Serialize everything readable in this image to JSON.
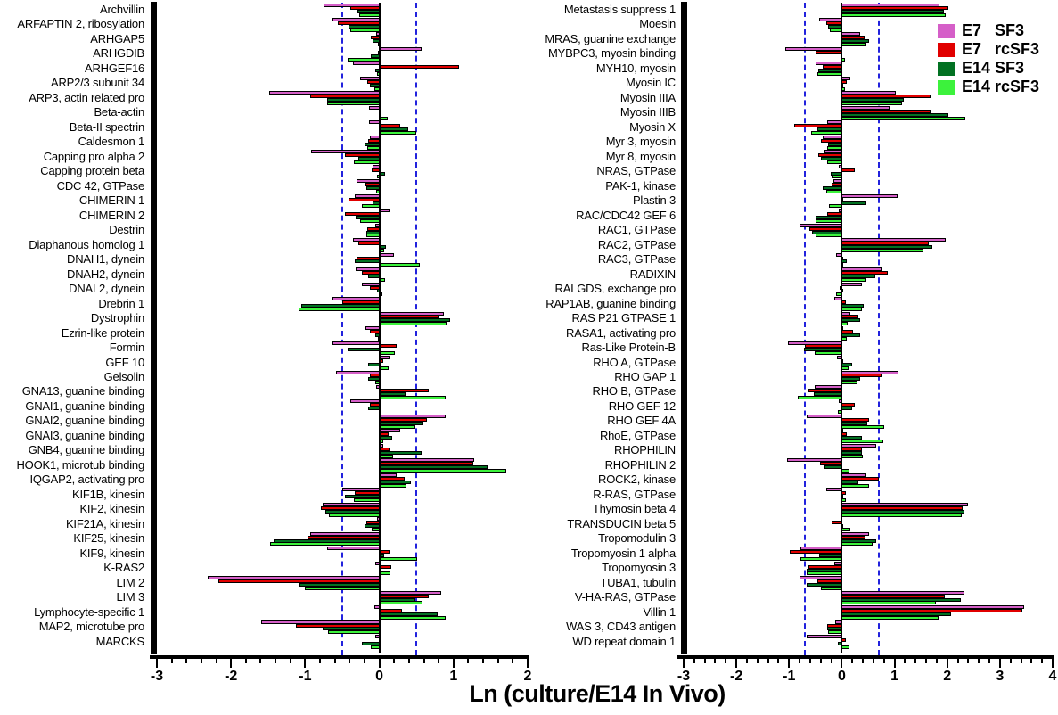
{
  "x_axis": {
    "label": "Ln (culture/E14 In Vivo)"
  },
  "legend": {
    "items": [
      {
        "label": "E7   SF3",
        "color": "#d55fc8"
      },
      {
        "label": "E7   rcSF3",
        "color": "#e10000"
      },
      {
        "label": "E14 SF3",
        "color": "#027122"
      },
      {
        "label": "E14 rcSF3",
        "color": "#3cf23c"
      }
    ]
  },
  "chart_data": {
    "type": "bar",
    "orientation": "horizontal",
    "xlabel": "Ln (culture/E14 In Vivo)",
    "series_names": [
      "E7 SF3",
      "E7 rcSF3",
      "E14 SF3",
      "E14 rcSF3"
    ],
    "series_colors": [
      "#d55fc8",
      "#e10000",
      "#027122",
      "#3cf23c"
    ],
    "grid": false,
    "legend_position": "top-right",
    "panels": [
      {
        "xlim": [
          -3,
          2
        ],
        "ticks": [
          -3,
          -2,
          -1,
          0,
          1,
          2
        ],
        "minor_tick_step": 0.2,
        "dashed_lines": [
          -0.5,
          0.5
        ],
        "rows": [
          {
            "label": "Archvillin",
            "values": [
              -0.75,
              -0.39,
              -0.29,
              -0.27
            ]
          },
          {
            "label": "ARFAPTIN 2, ribosylation",
            "values": [
              -0.63,
              -0.56,
              -0.41,
              -0.39
            ]
          },
          {
            "label": "ARHGAP5",
            "values": [
              -0.04,
              -0.12,
              -0.09,
              -0.02
            ]
          },
          {
            "label": "ARHGDIB",
            "values": [
              0.57,
              -0.02,
              -0.11,
              -0.43
            ]
          },
          {
            "label": "ARHGEF16",
            "values": [
              -0.35,
              1.08,
              -0.05,
              -0.03
            ]
          },
          {
            "label": "ARP2/3 subunit 34",
            "values": [
              -0.26,
              -0.16,
              -0.13,
              -0.07
            ]
          },
          {
            "label": "ARP3, actin related pro",
            "values": [
              -1.48,
              -0.93,
              -0.71,
              -0.71
            ]
          },
          {
            "label": "Beta-actin",
            "values": [
              -0.14,
              0.03,
              0.02,
              0.11
            ]
          },
          {
            "label": "Beta-II spectrin",
            "values": [
              -0.14,
              0.28,
              0.39,
              0.5
            ]
          },
          {
            "label": "Caldesmon 1",
            "values": [
              -0.13,
              -0.15,
              -0.2,
              -0.16
            ]
          },
          {
            "label": "Capping pro alpha 2",
            "values": [
              -0.92,
              -0.46,
              -0.28,
              -0.34
            ]
          },
          {
            "label": "Capping protein beta",
            "values": [
              -0.09,
              -0.1,
              0.08,
              -0.03
            ]
          },
          {
            "label": "CDC 42, GTPase",
            "values": [
              -0.31,
              -0.19,
              -0.17,
              -0.04
            ]
          },
          {
            "label": "CHIMERIN 1",
            "values": [
              -0.33,
              -0.42,
              -0.09,
              -0.24
            ]
          },
          {
            "label": "CHIMERIN 2",
            "values": [
              0.14,
              -0.46,
              -0.32,
              -0.26
            ]
          },
          {
            "label": "Destrin",
            "values": [
              -0.05,
              -0.16,
              -0.18,
              -0.18
            ]
          },
          {
            "label": "Diaphanous homolog 1",
            "values": [
              -0.35,
              -0.28,
              0.09,
              0.07
            ]
          },
          {
            "label": "DNAH1, dynein",
            "values": [
              0.2,
              -0.31,
              -0.33,
              0.55
            ]
          },
          {
            "label": "DNAH2, dynein",
            "values": [
              -0.32,
              -0.24,
              -0.15,
              0.08
            ]
          },
          {
            "label": "DNAL2, dynein",
            "values": [
              -0.24,
              -0.13,
              -0.03,
              0.04
            ]
          },
          {
            "label": "Drebrin 1",
            "values": [
              -0.63,
              -0.5,
              -1.05,
              -1.09
            ]
          },
          {
            "label": "Dystrophin",
            "values": [
              0.87,
              0.8,
              0.96,
              0.91
            ]
          },
          {
            "label": "Ezrin-like protein",
            "values": [
              -0.19,
              -0.13,
              -0.05,
              -0.02
            ]
          },
          {
            "label": "Formin",
            "values": [
              -0.63,
              0.23,
              -0.43,
              0.21
            ]
          },
          {
            "label": "GEF 10",
            "values": [
              0.14,
              0.05,
              -0.15,
              0.12
            ]
          },
          {
            "label": "Gelsolin",
            "values": [
              -0.58,
              -0.13,
              -0.15,
              -0.05
            ]
          },
          {
            "label": "GNA13, guanine binding",
            "values": [
              -0.04,
              0.67,
              0.35,
              0.9
            ]
          },
          {
            "label": "GNAI1, guanine binding",
            "values": [
              -0.39,
              -0.13,
              -0.15,
              0.02
            ]
          },
          {
            "label": "GNAI2, guanine binding",
            "values": [
              0.9,
              0.64,
              0.59,
              0.49
            ]
          },
          {
            "label": "GNAI3, guanine binding",
            "values": [
              0.28,
              0.12,
              0.17,
              0.05
            ]
          },
          {
            "label": "GNB4, guanine binding",
            "values": [
              0.05,
              0.14,
              0.57,
              0.19
            ]
          },
          {
            "label": "HOOK1, microtub binding",
            "values": [
              1.28,
              1.27,
              1.46,
              1.71
            ]
          },
          {
            "label": "IQGAP2, activating pro",
            "values": [
              0.23,
              0.34,
              0.43,
              0.37
            ]
          },
          {
            "label": "KIF1B, kinesin",
            "values": [
              -0.5,
              -0.33,
              -0.46,
              -0.34
            ]
          },
          {
            "label": "KIF2, kinesin",
            "values": [
              -0.76,
              -0.79,
              -0.73,
              -0.68
            ]
          },
          {
            "label": "KIF21A, kinesin",
            "values": [
              -0.03,
              -0.17,
              -0.2,
              -0.1
            ]
          },
          {
            "label": "KIF25, kinesin",
            "values": [
              -0.93,
              -0.97,
              -1.42,
              -1.47
            ]
          },
          {
            "label": "KIF9, kinesin",
            "values": [
              -0.7,
              0.14,
              0.07,
              0.51
            ]
          },
          {
            "label": "K-RAS2",
            "values": [
              -0.06,
              0.16,
              0.03,
              0.15
            ]
          },
          {
            "label": "LIM 2",
            "values": [
              -2.32,
              -2.17,
              -1.08,
              -1.0
            ]
          },
          {
            "label": "LIM 3",
            "values": [
              0.83,
              0.66,
              0.48,
              0.58
            ]
          },
          {
            "label": "Lymphocyte-specific 1",
            "values": [
              -0.07,
              0.31,
              0.79,
              0.89
            ]
          },
          {
            "label": "MAP2, microtube pro",
            "values": [
              -1.59,
              -1.13,
              -0.77,
              -0.69
            ]
          },
          {
            "label": "MARCKS",
            "values": [
              -0.06,
              0.03,
              -0.24,
              -0.12
            ]
          }
        ]
      },
      {
        "xlim": [
          -3,
          4
        ],
        "ticks": [
          -3,
          -2,
          -1,
          0,
          1,
          2,
          3,
          4
        ],
        "minor_tick_step": 0.2,
        "dashed_lines": [
          -0.7,
          0.7
        ],
        "rows": [
          {
            "label": "Metastasis suppress 1",
            "values": [
              1.86,
              2.03,
              1.93,
              1.97
            ]
          },
          {
            "label": "Moesin",
            "values": [
              -0.43,
              -0.3,
              -0.26,
              -0.22
            ]
          },
          {
            "label": "MRAS, guanine exchange",
            "values": [
              0.35,
              0.44,
              0.51,
              0.47
            ]
          },
          {
            "label": "MYBPC3, myosin binding",
            "values": [
              -1.07,
              -0.5,
              -0.02,
              0.06
            ]
          },
          {
            "label": "MYH10, myosin",
            "values": [
              -0.49,
              -0.37,
              -0.45,
              -0.46
            ]
          },
          {
            "label": "Myosin IC",
            "values": [
              0.17,
              0.1,
              0.02,
              0.06
            ]
          },
          {
            "label": "Myosin IIIA",
            "values": [
              1.02,
              1.69,
              1.17,
              1.14
            ]
          },
          {
            "label": "Myosin IIIB",
            "values": [
              0.9,
              1.69,
              2.03,
              2.35
            ]
          },
          {
            "label": "Myosin X",
            "values": [
              -0.28,
              -0.91,
              -0.46,
              -0.59
            ]
          },
          {
            "label": "Myr 3, myosin",
            "values": [
              -0.37,
              -0.39,
              -0.26,
              -0.28
            ]
          },
          {
            "label": "Myr 8, myosin",
            "values": [
              -0.33,
              -0.44,
              -0.39,
              -0.28
            ]
          },
          {
            "label": "NRAS, GTPase",
            "values": [
              -0.05,
              0.24,
              -0.21,
              -0.18
            ]
          },
          {
            "label": "PAK-1, kinase",
            "values": [
              -0.16,
              -0.2,
              -0.37,
              -0.3
            ]
          },
          {
            "label": "Plastin 3",
            "values": [
              1.06,
              0.02,
              0.47,
              -0.25
            ]
          },
          {
            "label": "RAC/CDC42 GEF 6",
            "values": [
              -0.05,
              -0.28,
              -0.49,
              -0.49
            ]
          },
          {
            "label": "RAC1, GTPase",
            "values": [
              -0.8,
              -0.62,
              -0.56,
              -0.5
            ]
          },
          {
            "label": "RAC2, GTPase",
            "values": [
              1.97,
              1.65,
              1.72,
              1.54
            ]
          },
          {
            "label": "RAC3, GTPase",
            "values": [
              -0.11,
              0.02,
              0.09,
              0.03
            ]
          },
          {
            "label": "RADIXIN",
            "values": [
              0.76,
              0.87,
              0.63,
              0.46
            ]
          },
          {
            "label": "RALGDS, exchange pro",
            "values": [
              0.39,
              -0.04,
              0.02,
              -0.11
            ]
          },
          {
            "label": "RAP1AB, guanine binding",
            "values": [
              -0.15,
              0.08,
              0.42,
              0.38
            ]
          },
          {
            "label": "RAS P21 GTPASE  1",
            "values": [
              0.17,
              0.32,
              0.35,
              0.11
            ]
          },
          {
            "label": "RASA1, activating pro",
            "values": [
              0.02,
              0.21,
              0.34,
              0.1
            ]
          },
          {
            "label": "Ras-Like Protein-B",
            "values": [
              -1.02,
              -0.7,
              -0.72,
              -0.51
            ]
          },
          {
            "label": "RHO  A, GTPase",
            "values": [
              -0.1,
              0.02,
              0.19,
              0.13
            ]
          },
          {
            "label": "RHO  GAP  1",
            "values": [
              1.08,
              0.76,
              0.35,
              0.3
            ]
          },
          {
            "label": "RHO B, GTPase",
            "values": [
              -0.51,
              -0.63,
              -0.53,
              -0.83
            ]
          },
          {
            "label": "RHO GEF 12",
            "values": [
              -0.06,
              0.24,
              0.2,
              -0.07
            ]
          },
          {
            "label": "RHO GEF 4A",
            "values": [
              -0.67,
              0.51,
              0.49,
              0.81
            ]
          },
          {
            "label": "RhoE, GTPase",
            "values": [
              0.02,
              0.1,
              0.38,
              0.79
            ]
          },
          {
            "label": "RHOPHILIN",
            "values": [
              0.65,
              0.38,
              0.38,
              0.4
            ]
          },
          {
            "label": "RHOPHILIN 2",
            "values": [
              -1.04,
              -0.42,
              -0.33,
              0.14
            ]
          },
          {
            "label": "ROCK2, kinase",
            "values": [
              0.47,
              0.71,
              0.31,
              0.51
            ]
          },
          {
            "label": "R-RAS, GTPase",
            "values": [
              -0.3,
              0.08,
              0.03,
              0.07
            ]
          },
          {
            "label": "Thymosin beta 4",
            "values": [
              2.39,
              2.29,
              2.32,
              2.28
            ]
          },
          {
            "label": "TRANSDUCIN beta  5",
            "values": [
              -0.03,
              -0.19,
              0.03,
              0.17
            ]
          },
          {
            "label": "Tropomodulin 3",
            "values": [
              0.52,
              0.45,
              0.65,
              0.58
            ]
          },
          {
            "label": "Tropomyosin 1 alpha",
            "values": [
              -0.78,
              -0.99,
              -0.43,
              -0.78
            ]
          },
          {
            "label": "Tropomyosin 3",
            "values": [
              -0.15,
              -0.64,
              -0.66,
              -0.66
            ]
          },
          {
            "label": "TUBA1, tubulin",
            "values": [
              -0.81,
              -0.46,
              -0.67,
              -0.4
            ]
          },
          {
            "label": "V-HA-RAS, GTPase",
            "values": [
              2.32,
              1.96,
              2.26,
              1.79
            ]
          },
          {
            "label": "Villin 1",
            "values": [
              3.46,
              3.43,
              2.07,
              1.83
            ]
          },
          {
            "label": "WAS 3, CD43 antigen",
            "values": [
              -0.13,
              -0.28,
              -0.28,
              -0.26
            ]
          },
          {
            "label": "WD repeat domain 1",
            "values": [
              -0.66,
              0.07,
              -0.08,
              0.14
            ]
          }
        ]
      }
    ]
  }
}
